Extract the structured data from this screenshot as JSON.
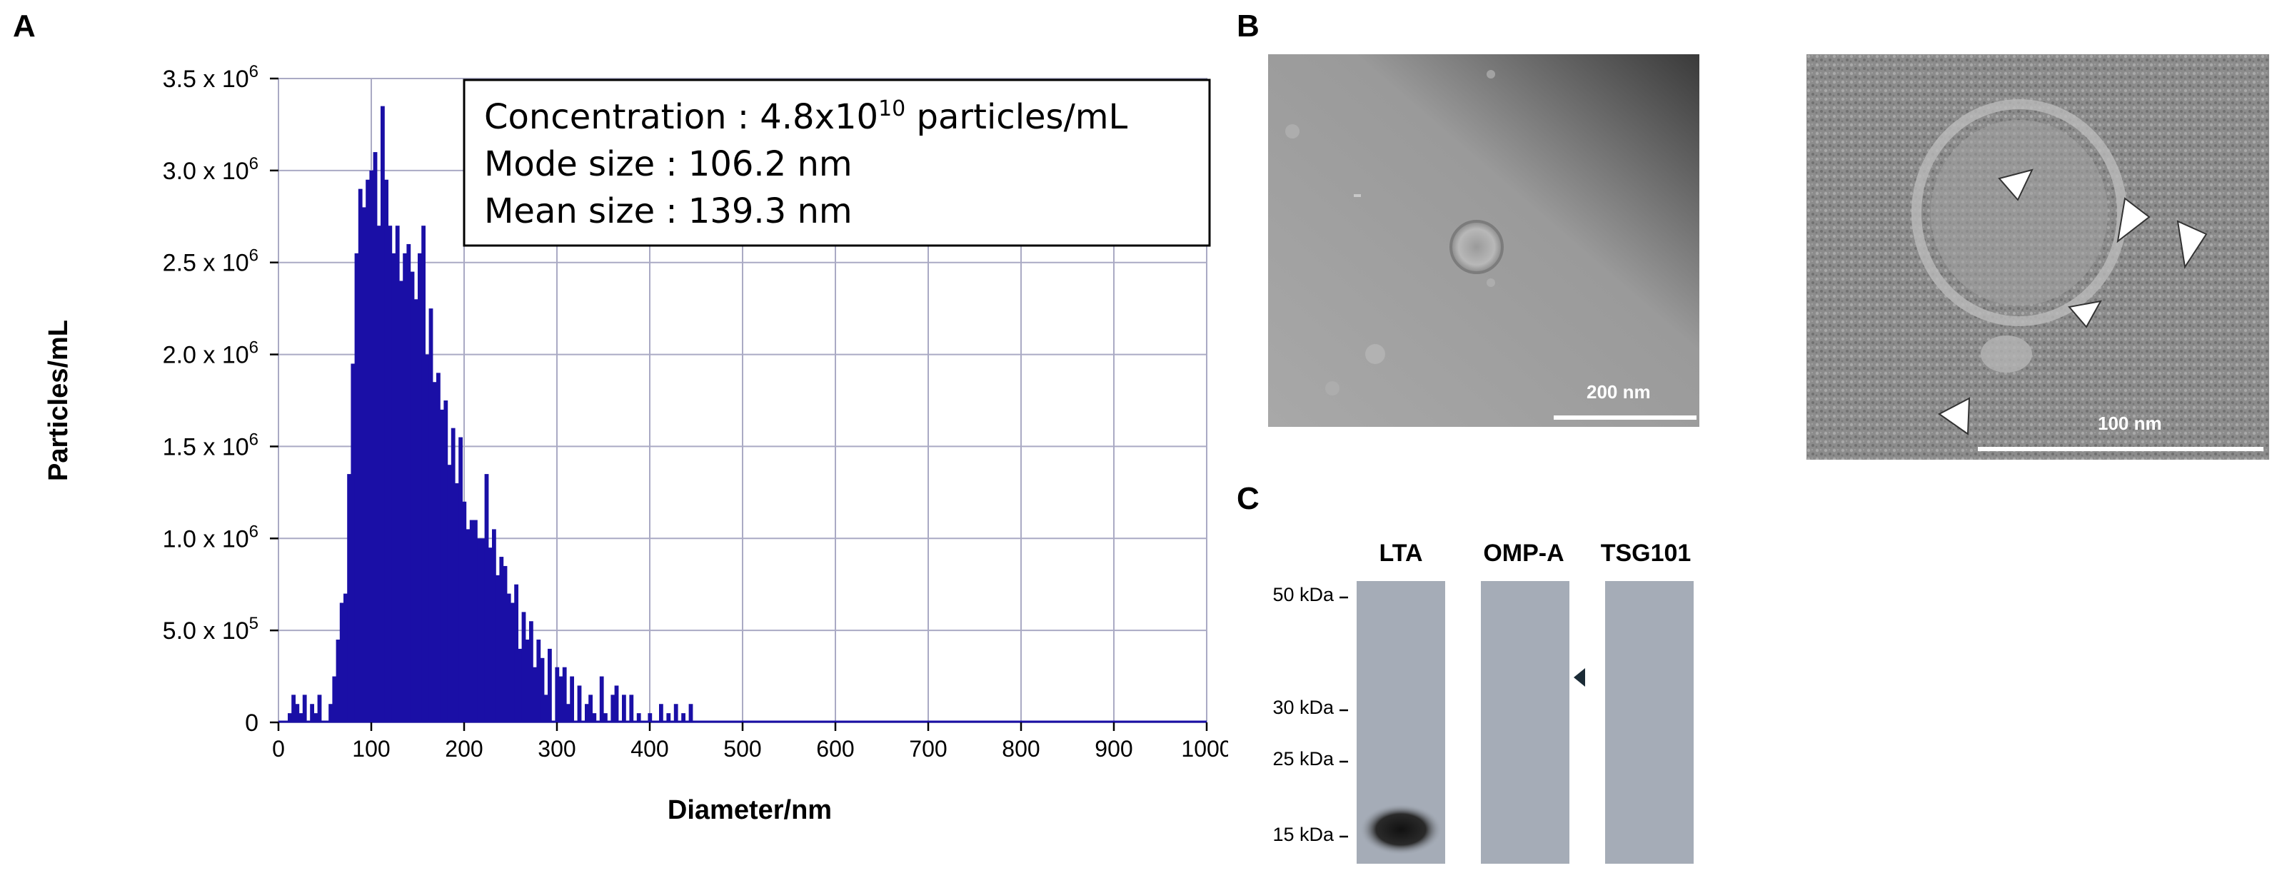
{
  "panels": {
    "a": "A",
    "b": "B",
    "c": "C"
  },
  "chart_data": {
    "type": "bar",
    "xlabel": "Diameter/nm",
    "ylabel": "Particles/mL",
    "xlim": [
      0,
      1000
    ],
    "ylim": [
      0,
      3500000
    ],
    "xticks": [
      "0",
      "100",
      "200",
      "300",
      "400",
      "500",
      "600",
      "700",
      "800",
      "900",
      "1000"
    ],
    "yticks": [
      {
        "value": 0,
        "text": "0",
        "base": "",
        "exp": ""
      },
      {
        "value": 500000,
        "text": "5.0 x 10",
        "exp": "5"
      },
      {
        "value": 1000000,
        "text": "1.0 x 10",
        "exp": "6"
      },
      {
        "value": 1500000,
        "text": "1.5 x 10",
        "exp": "6"
      },
      {
        "value": 2000000,
        "text": "2.0 x 10",
        "exp": "6"
      },
      {
        "value": 2500000,
        "text": "2.5 x 10",
        "exp": "6"
      },
      {
        "value": 3000000,
        "text": "3.0 x 10",
        "exp": "6"
      },
      {
        "value": 3500000,
        "text": "3.5 x 10",
        "exp": "6"
      }
    ],
    "grid": true,
    "bar_color": "#1a0fa6",
    "annotation": {
      "concentration_label": "Concentration : 4.8x10",
      "concentration_exp": "10",
      "concentration_unit": " particles/mL",
      "mode_label": "Mode size :  106.2 nm",
      "mean_label": "Mean size : 139.3 nm"
    },
    "x": [
      12,
      16,
      20,
      24,
      28,
      32,
      36,
      40,
      44,
      48,
      52,
      56,
      60,
      64,
      68,
      72,
      76,
      80,
      84,
      88,
      92,
      96,
      100,
      104,
      108,
      112,
      116,
      120,
      124,
      128,
      132,
      136,
      140,
      144,
      148,
      152,
      156,
      160,
      164,
      168,
      172,
      176,
      180,
      184,
      188,
      192,
      196,
      200,
      204,
      208,
      212,
      216,
      220,
      224,
      228,
      232,
      236,
      240,
      244,
      248,
      252,
      256,
      260,
      264,
      268,
      272,
      276,
      280,
      284,
      288,
      292,
      296,
      300,
      304,
      308,
      312,
      316,
      320,
      324,
      328,
      332,
      336,
      340,
      344,
      348,
      352,
      356,
      360,
      364,
      368,
      372,
      376,
      380,
      384,
      388,
      392,
      396,
      400,
      404,
      408,
      412,
      416,
      420,
      424,
      428,
      432,
      436,
      440,
      444
    ],
    "values": [
      50000,
      150000,
      100000,
      50000,
      150000,
      0,
      100000,
      50000,
      150000,
      0,
      0,
      100000,
      250000,
      450000,
      650000,
      700000,
      1350000,
      1950000,
      2550000,
      2900000,
      2800000,
      2950000,
      3000000,
      3100000,
      2700000,
      3350000,
      2950000,
      2700000,
      2550000,
      2700000,
      2400000,
      2550000,
      2600000,
      2450000,
      2300000,
      2550000,
      2700000,
      2000000,
      2250000,
      1850000,
      1900000,
      1700000,
      1750000,
      1400000,
      1600000,
      1300000,
      1550000,
      1200000,
      1050000,
      1100000,
      1100000,
      1000000,
      1000000,
      1350000,
      950000,
      1050000,
      800000,
      900000,
      850000,
      700000,
      650000,
      750000,
      400000,
      600000,
      450000,
      550000,
      300000,
      450000,
      350000,
      150000,
      400000,
      0,
      300000,
      250000,
      300000,
      100000,
      250000,
      0,
      200000,
      0,
      100000,
      150000,
      50000,
      0,
      250000,
      50000,
      0,
      150000,
      200000,
      0,
      150000,
      0,
      150000,
      0,
      50000,
      0,
      0,
      50000,
      0,
      0,
      100000,
      0,
      50000,
      0,
      100000,
      0,
      50000,
      0,
      100000
    ]
  },
  "tem": {
    "left_scale": "200 nm",
    "right_scale": "100 nm"
  },
  "blot": {
    "lanes": [
      "LTA",
      "OMP-A",
      "TSG101"
    ],
    "markers": [
      {
        "label": "50 kDa"
      },
      {
        "label": "30 kDa"
      },
      {
        "label": "25 kDa"
      },
      {
        "label": "15 kDa"
      }
    ],
    "lane_color": "#a5acb7",
    "arrow_color": "#1b2b36"
  }
}
